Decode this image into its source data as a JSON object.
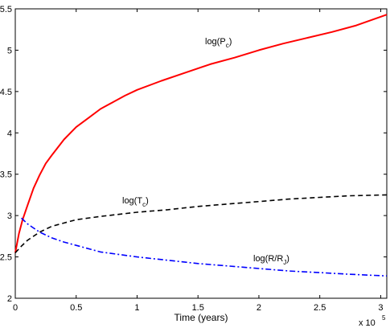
{
  "chart_data": {
    "type": "line",
    "xlabel": "Time (years)",
    "x_exponent_base": "x 10",
    "x_exponent_power": "5",
    "xlim": [
      0,
      3.05
    ],
    "ylim": [
      2,
      5.5
    ],
    "x_ticks": [
      "0",
      "0.5",
      "1",
      "1.5",
      "2",
      "2.5",
      "3"
    ],
    "y_ticks": [
      "2",
      "2.5",
      "3",
      "3.5",
      "4",
      "4.5",
      "5",
      "5.5"
    ],
    "grid": false,
    "series": [
      {
        "name": "log(P_c)",
        "label_main": "log(P",
        "label_sub": "c",
        "label_end": ")",
        "color": "#ff0000",
        "style": "solid",
        "x": [
          0.0,
          0.03,
          0.06,
          0.1,
          0.15,
          0.2,
          0.25,
          0.3,
          0.4,
          0.5,
          0.6,
          0.7,
          0.8,
          0.9,
          1.0,
          1.2,
          1.4,
          1.6,
          1.8,
          2.0,
          2.2,
          2.4,
          2.6,
          2.8,
          3.05
        ],
        "y": [
          2.55,
          2.78,
          2.95,
          3.12,
          3.33,
          3.49,
          3.63,
          3.73,
          3.92,
          4.07,
          4.18,
          4.29,
          4.37,
          4.45,
          4.52,
          4.63,
          4.73,
          4.83,
          4.91,
          5.0,
          5.08,
          5.15,
          5.22,
          5.3,
          5.43
        ]
      },
      {
        "name": "log(T_c)",
        "label_main": "log(T",
        "label_sub": "c",
        "label_end": ")",
        "color": "#000000",
        "style": "dashed",
        "x": [
          0.0,
          0.05,
          0.1,
          0.2,
          0.3,
          0.4,
          0.5,
          0.7,
          1.0,
          1.25,
          1.5,
          1.75,
          2.0,
          2.25,
          2.5,
          2.75,
          3.05
        ],
        "y": [
          2.55,
          2.63,
          2.7,
          2.8,
          2.87,
          2.91,
          2.95,
          2.99,
          3.04,
          3.07,
          3.11,
          3.14,
          3.17,
          3.2,
          3.22,
          3.24,
          3.25
        ]
      },
      {
        "name": "log(R/R_J)",
        "label_main": "log(R/R",
        "label_sub": "J",
        "label_end": ")",
        "color": "#0000ff",
        "style": "dashdot",
        "x": [
          0.05,
          0.1,
          0.15,
          0.2,
          0.3,
          0.4,
          0.5,
          0.7,
          1.0,
          1.25,
          1.5,
          1.75,
          2.0,
          2.25,
          2.5,
          2.75,
          3.05
        ],
        "y": [
          2.97,
          2.9,
          2.85,
          2.8,
          2.73,
          2.68,
          2.64,
          2.56,
          2.5,
          2.46,
          2.42,
          2.39,
          2.36,
          2.33,
          2.31,
          2.29,
          2.27
        ]
      }
    ]
  }
}
